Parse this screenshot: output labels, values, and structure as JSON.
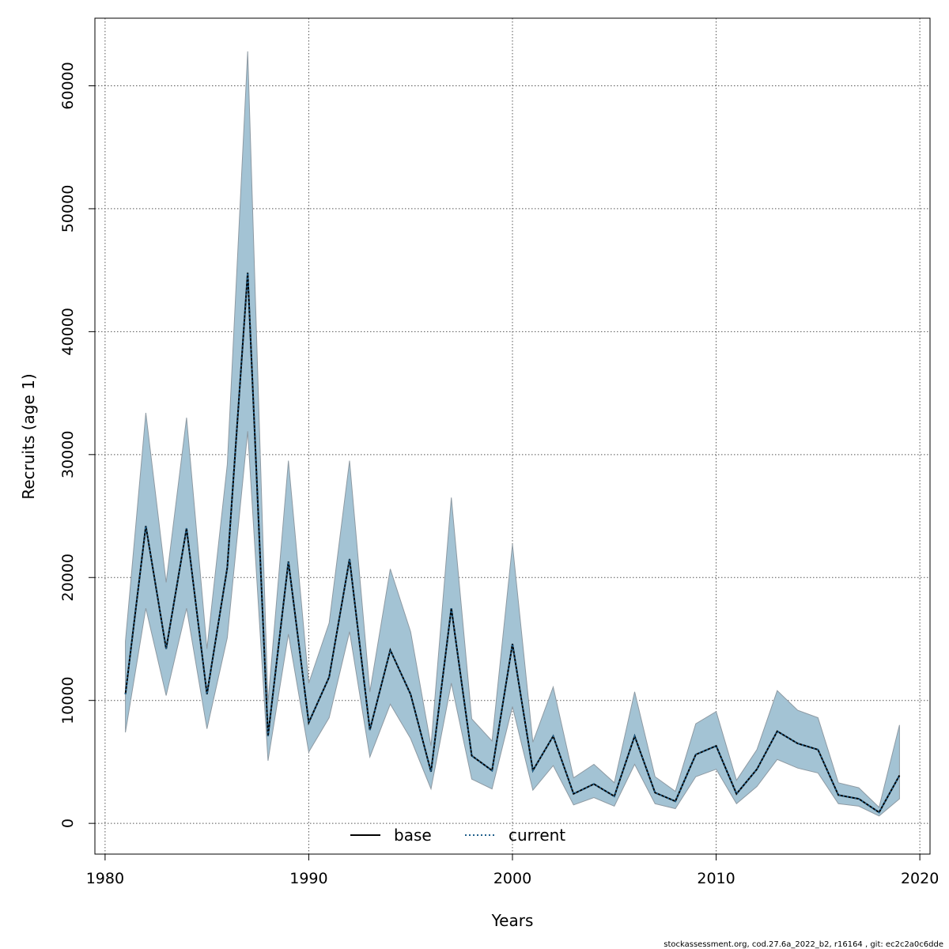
{
  "chart_data": {
    "type": "line",
    "title": "",
    "xlabel": "Years",
    "ylabel": "Recruits (age 1)",
    "xlim": [
      1979.5,
      2020.5
    ],
    "ylim": [
      -2500,
      65500
    ],
    "x_ticks": [
      1980,
      1990,
      2000,
      2010,
      2020
    ],
    "y_ticks": [
      0,
      10000,
      20000,
      30000,
      40000,
      50000,
      60000
    ],
    "x_tick_labels": [
      "1980",
      "1990",
      "2000",
      "2010",
      "2020"
    ],
    "y_tick_labels": [
      "0",
      "10000",
      "20000",
      "30000",
      "40000",
      "50000",
      "60000"
    ],
    "grid": true,
    "legend_position": "bottom-center",
    "colors": {
      "band_fill": "#a3c3d4",
      "band_edge": "#8e9aa3",
      "base_line": "#000000",
      "current_line": "#1f5f8b",
      "grid": "#555555"
    },
    "x": [
      1981,
      1982,
      1983,
      1984,
      1985,
      1986,
      1987,
      1988,
      1989,
      1990,
      1991,
      1992,
      1993,
      1994,
      1995,
      1996,
      1997,
      1998,
      1999,
      2000,
      2001,
      2002,
      2003,
      2004,
      2005,
      2006,
      2007,
      2008,
      2009,
      2010,
      2011,
      2012,
      2013,
      2014,
      2015,
      2016,
      2017,
      2018,
      2019
    ],
    "series": [
      {
        "name": "base",
        "style": "solid",
        "values": [
          10500,
          24200,
          14200,
          24000,
          10500,
          20800,
          44800,
          7100,
          21300,
          8200,
          11900,
          21500,
          7600,
          14100,
          10500,
          4200,
          17500,
          5500,
          4300,
          14600,
          4300,
          7100,
          2400,
          3200,
          2200,
          7100,
          2500,
          1800,
          5600,
          6300,
          2400,
          4400,
          7500,
          6500,
          6000,
          2300,
          2000,
          900,
          3900
        ]
      },
      {
        "name": "current",
        "style": "dotted",
        "values": [
          10500,
          24200,
          14200,
          24000,
          10500,
          20800,
          44800,
          7100,
          21300,
          8200,
          11900,
          21500,
          7600,
          14100,
          10500,
          4200,
          17500,
          5500,
          4300,
          14600,
          4300,
          7100,
          2400,
          3200,
          2200,
          7100,
          2500,
          1800,
          5600,
          6300,
          2400,
          4400,
          7500,
          6500,
          6000,
          2300,
          2000,
          900,
          3900
        ]
      }
    ],
    "band": {
      "lower": [
        7400,
        17500,
        10400,
        17500,
        7700,
        15100,
        31900,
        5100,
        15400,
        5800,
        8600,
        15600,
        5400,
        9700,
        6900,
        2800,
        11400,
        3600,
        2800,
        9500,
        2700,
        4700,
        1500,
        2100,
        1400,
        4800,
        1600,
        1200,
        3800,
        4400,
        1600,
        3000,
        5200,
        4500,
        4100,
        1600,
        1400,
        600,
        2000
      ],
      "upper": [
        14800,
        33400,
        19600,
        33000,
        14200,
        29200,
        62800,
        9800,
        29500,
        11400,
        16300,
        29500,
        10700,
        20700,
        15600,
        6300,
        26500,
        8500,
        6700,
        22700,
        6600,
        11100,
        3700,
        4800,
        3300,
        10700,
        3800,
        2600,
        8100,
        9100,
        3500,
        6000,
        10800,
        9200,
        8600,
        3300,
        2900,
        1300,
        8000
      ]
    },
    "legend": [
      {
        "label": "base",
        "style": "solid"
      },
      {
        "label": "current",
        "style": "dotted"
      }
    ],
    "footer": "stockassessment.org, cod.27.6a_2022_b2, r16164 , git: ec2c2a0c6dde"
  }
}
